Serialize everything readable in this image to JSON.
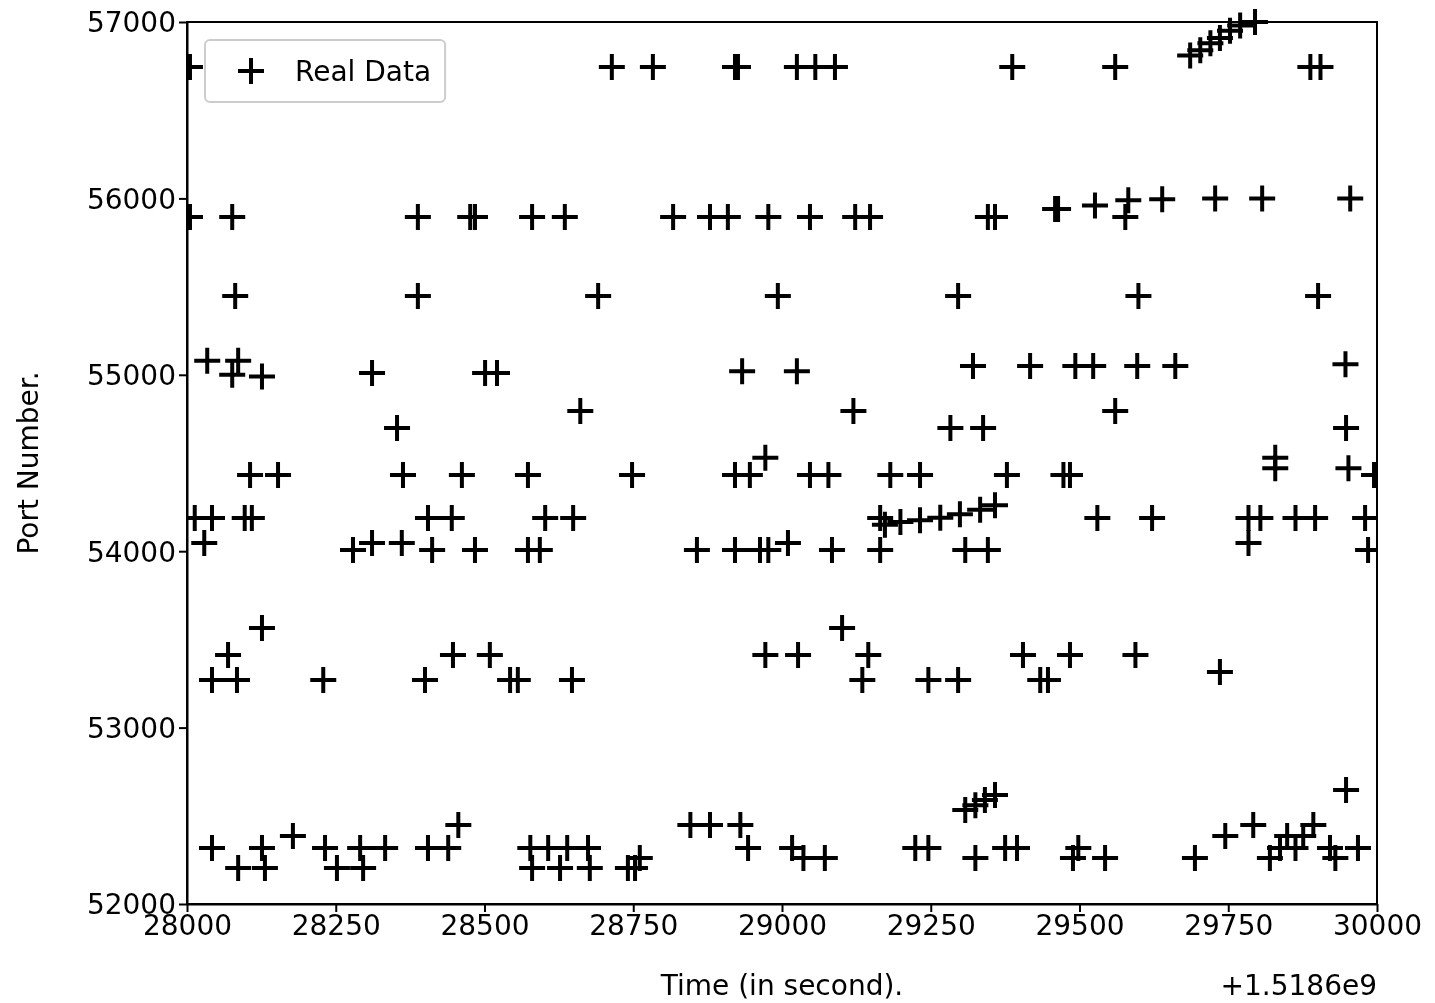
{
  "chart_data": {
    "type": "scatter",
    "xlabel": "Time (in second).",
    "ylabel": "Port Number.",
    "annotations": [
      "+1.5186e9"
    ],
    "xlim": [
      28000,
      30000
    ],
    "xticks": [
      28000,
      28250,
      28500,
      28750,
      29000,
      29250,
      29500,
      29750,
      30000
    ],
    "ylim": [
      52000,
      57000
    ],
    "yticks": [
      52000,
      53000,
      54000,
      55000,
      56000,
      57000
    ],
    "grid": false,
    "legend": "top left",
    "marker": "cross",
    "series": [
      {
        "name": "Real Data",
        "color": "#000000",
        "x": [
          28005,
          28714,
          28783,
          28921,
          28926,
          29025,
          29056,
          29089,
          29387,
          29560,
          29888,
          29905,
          29686,
          29703,
          29720,
          29736,
          29753,
          29770,
          29795,
          28005,
          28076,
          28388,
          28476,
          28484,
          28580,
          28635,
          28817,
          28879,
          28909,
          28977,
          29047,
          29123,
          29148,
          29346,
          29358,
          29459,
          29464,
          29577,
          29526,
          29582,
          29639,
          29728,
          29807,
          29955,
          28081,
          28388,
          28691,
          28993,
          29296,
          29599,
          29901,
          28034,
          28086,
          28076,
          28126,
          28311,
          28501,
          28521,
          28933,
          29025,
          29321,
          29417,
          29493,
          29523,
          29597,
          29661,
          29947,
          28661,
          29120,
          29560,
          28353,
          29283,
          29338,
          29948,
          28972,
          29829,
          28106,
          28153,
          28363,
          28462,
          28573,
          28748,
          28921,
          28946,
          29047,
          29078,
          29182,
          29232,
          29378,
          29473,
          29484,
          29829,
          29952,
          29995,
          28013,
          28042,
          28097,
          28109,
          28405,
          28445,
          28602,
          28649,
          29165,
          29530,
          29622,
          29784,
          29804,
          29863,
          29896,
          29980,
          29173,
          29199,
          29232,
          29266,
          29299,
          29333,
          29358,
          28029,
          28311,
          28361,
          29010,
          29784,
          28279,
          28412,
          28484,
          28573,
          28593,
          28857,
          28921,
          28963,
          28977,
          29084,
          29165,
          29308,
          29346,
          29985,
          28126,
          29101,
          28069,
          28447,
          28509,
          28972,
          29027,
          29145,
          29405,
          29484,
          29594,
          29736,
          28042,
          28084,
          28229,
          28400,
          28543,
          28556,
          28647,
          29135,
          29246,
          29296,
          29434,
          29447,
          29948,
          29308,
          29325,
          29341,
          29358,
          28456,
          28846,
          28879,
          28930,
          29792,
          29893,
          28178,
          29745,
          29849,
          29876,
          28042,
          28126,
          28232,
          28291,
          28333,
          28405,
          28439,
          28577,
          28607,
          28639,
          28674,
          28943,
          29017,
          29224,
          29246,
          29375,
          29395,
          29498,
          29837,
          29863,
          29921,
          29968,
          28761,
          29036,
          29072,
          29325,
          29489,
          29543,
          29694,
          29820,
          29930,
          28086,
          28131,
          28252,
          28296,
          28580,
          28627,
          28677,
          28741,
          28753
        ],
        "values": [
          56745,
          56745,
          56745,
          56745,
          56745,
          56745,
          56745,
          56745,
          56745,
          56745,
          56745,
          56745,
          56810,
          56840,
          56880,
          56910,
          56950,
          56980,
          57000,
          55895,
          55895,
          55895,
          55895,
          55895,
          55895,
          55895,
          55895,
          55895,
          55895,
          55895,
          55895,
          55895,
          55895,
          55895,
          55895,
          55940,
          55940,
          55895,
          55960,
          55990,
          55995,
          56000,
          56000,
          56000,
          55447,
          55447,
          55447,
          55447,
          55447,
          55447,
          55447,
          55080,
          55080,
          55000,
          54990,
          55010,
          55010,
          55010,
          55020,
          55020,
          55050,
          55050,
          55050,
          55050,
          55050,
          55050,
          55060,
          54795,
          54795,
          54795,
          54698,
          54698,
          54698,
          54698,
          54530,
          54530,
          54432,
          54432,
          54432,
          54432,
          54432,
          54432,
          54432,
          54432,
          54432,
          54432,
          54432,
          54432,
          54432,
          54432,
          54432,
          54470,
          54470,
          54432,
          54188,
          54188,
          54188,
          54188,
          54188,
          54188,
          54188,
          54188,
          54188,
          54188,
          54188,
          54188,
          54188,
          54188,
          54188,
          54188,
          54150,
          54165,
          54175,
          54190,
          54210,
          54235,
          54260,
          54047,
          54047,
          54047,
          54047,
          54047,
          54007,
          54007,
          54007,
          54007,
          54007,
          54007,
          54007,
          54007,
          54007,
          54007,
          54007,
          54007,
          54007,
          54007,
          53565,
          53565,
          53412,
          53412,
          53412,
          53412,
          53412,
          53412,
          53412,
          53412,
          53412,
          53315,
          53270,
          53270,
          53270,
          53270,
          53270,
          53270,
          53270,
          53270,
          53270,
          53270,
          53270,
          53270,
          52646,
          52533,
          52560,
          52590,
          52618,
          52448,
          52448,
          52448,
          52448,
          52448,
          52448,
          52386,
          52386,
          52386,
          52386,
          52317,
          52317,
          52317,
          52317,
          52317,
          52317,
          52317,
          52317,
          52317,
          52317,
          52317,
          52317,
          52317,
          52317,
          52317,
          52317,
          52317,
          52317,
          52317,
          52317,
          52317,
          52317,
          52261,
          52261,
          52261,
          52261,
          52261,
          52261,
          52261,
          52261,
          52261,
          52204,
          52204,
          52204,
          52204,
          52204,
          52204,
          52204,
          52204,
          52204
        ]
      }
    ]
  }
}
